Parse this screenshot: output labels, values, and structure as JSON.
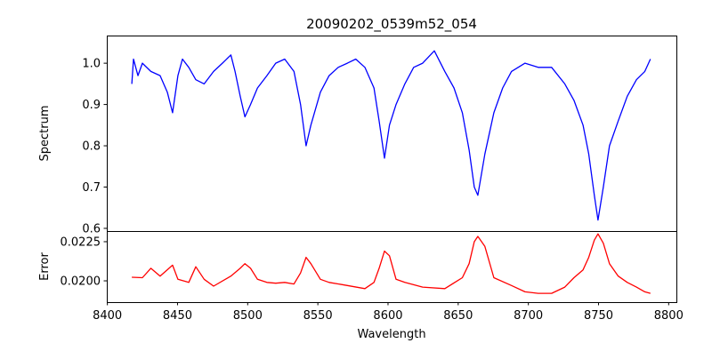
{
  "chart_data": [
    {
      "type": "line",
      "title": "20090202_0539m52_054",
      "xlabel": "",
      "ylabel": "Spectrum",
      "xlim": [
        8399.6,
        8805.5
      ],
      "ylim": [
        0.5935,
        1.067
      ],
      "yticks": [
        0.6,
        0.7,
        0.8,
        0.9,
        1.0
      ],
      "ytick_labels": [
        "0.6",
        "0.7",
        "0.8",
        "0.9",
        "1.0"
      ],
      "color": "#0000ff",
      "x": [
        8417.4,
        8418.6,
        8421.8,
        8425,
        8431,
        8437.6,
        8442.7,
        8446.5,
        8450.3,
        8453.5,
        8458,
        8463,
        8469,
        8475.7,
        8482,
        8488,
        8491,
        8494.7,
        8498,
        8502,
        8507,
        8513.7,
        8520,
        8526.4,
        8533,
        8537.7,
        8541.6,
        8545,
        8551.8,
        8558,
        8564.5,
        8571,
        8577,
        8583.5,
        8590,
        8593.7,
        8597.5,
        8601,
        8605.7,
        8612,
        8618.3,
        8624.7,
        8633,
        8640.5,
        8647,
        8653,
        8657.8,
        8661.5,
        8664,
        8669,
        8675.4,
        8681.7,
        8688,
        8697.6,
        8707,
        8716.6,
        8726,
        8732.5,
        8739,
        8743,
        8747,
        8749.6,
        8753.4,
        8757.8,
        8764,
        8770.5,
        8777,
        8783,
        8787
      ],
      "y": [
        0.95,
        1.01,
        0.97,
        1.0,
        0.98,
        0.97,
        0.93,
        0.88,
        0.97,
        1.01,
        0.99,
        0.96,
        0.95,
        0.98,
        1.0,
        1.02,
        0.98,
        0.92,
        0.87,
        0.9,
        0.94,
        0.97,
        1.0,
        1.01,
        0.98,
        0.9,
        0.8,
        0.85,
        0.93,
        0.97,
        0.99,
        1.0,
        1.01,
        0.99,
        0.94,
        0.86,
        0.77,
        0.85,
        0.9,
        0.95,
        0.99,
        1.0,
        1.03,
        0.98,
        0.94,
        0.88,
        0.79,
        0.7,
        0.68,
        0.78,
        0.88,
        0.94,
        0.98,
        1.0,
        0.99,
        0.99,
        0.95,
        0.91,
        0.85,
        0.78,
        0.68,
        0.62,
        0.7,
        0.8,
        0.86,
        0.92,
        0.96,
        0.98,
        1.01
      ]
    },
    {
      "type": "line",
      "title": "",
      "xlabel": "Wavelength",
      "ylabel": "Error",
      "xlim": [
        8399.6,
        8805.5
      ],
      "ylim": [
        0.01864,
        0.02318
      ],
      "xticks": [
        8400,
        8450,
        8500,
        8550,
        8600,
        8650,
        8700,
        8750,
        8800
      ],
      "xtick_labels": [
        "8400",
        "8450",
        "8500",
        "8550",
        "8600",
        "8650",
        "8700",
        "8750",
        "8800"
      ],
      "yticks": [
        0.02,
        0.0225
      ],
      "ytick_labels": [
        "0.0200",
        "0.0225"
      ],
      "color": "#ff0000",
      "x": [
        8417.4,
        8425,
        8431,
        8437.6,
        8446.5,
        8450.3,
        8458,
        8463,
        8469,
        8475.7,
        8488,
        8494.7,
        8498,
        8502,
        8507,
        8513.7,
        8520,
        8526.4,
        8533,
        8537.7,
        8541.6,
        8545,
        8551.8,
        8558,
        8571,
        8583.5,
        8590,
        8593.7,
        8597.5,
        8601,
        8605.7,
        8612,
        8624.7,
        8640.5,
        8653,
        8657.8,
        8661.5,
        8664,
        8669,
        8675.4,
        8688,
        8697.6,
        8707,
        8716.6,
        8726,
        8732.5,
        8739,
        8743,
        8747,
        8749.6,
        8753.4,
        8757.8,
        8764,
        8770.5,
        8777,
        8783,
        8787
      ],
      "y": [
        0.02023,
        0.0202,
        0.0208,
        0.0203,
        0.021,
        0.0201,
        0.0199,
        0.0209,
        0.0201,
        0.01966,
        0.0203,
        0.0208,
        0.0211,
        0.0208,
        0.0201,
        0.0199,
        0.01985,
        0.0199,
        0.0198,
        0.0205,
        0.0215,
        0.0211,
        0.0201,
        0.0199,
        0.0197,
        0.0195,
        0.0199,
        0.0208,
        0.0219,
        0.0216,
        0.0201,
        0.0199,
        0.0196,
        0.0195,
        0.0202,
        0.0211,
        0.0225,
        0.02284,
        0.0222,
        0.0202,
        0.0197,
        0.0193,
        0.0192,
        0.0192,
        0.0196,
        0.0202,
        0.0207,
        0.0215,
        0.0226,
        0.023,
        0.0224,
        0.0211,
        0.0203,
        0.0199,
        0.0196,
        0.0193,
        0.0192
      ]
    }
  ]
}
